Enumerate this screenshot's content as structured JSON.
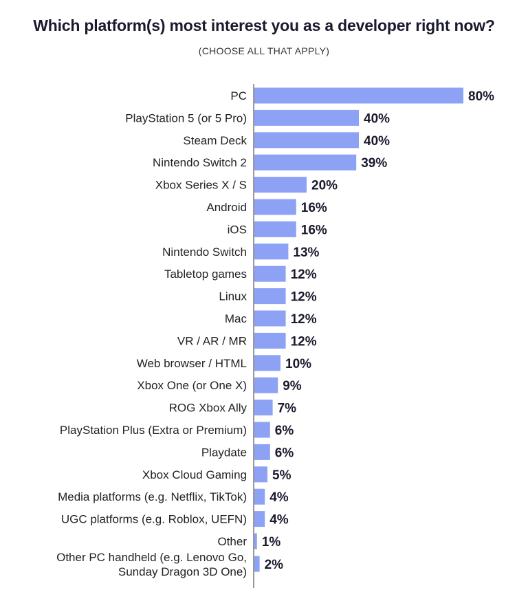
{
  "chart_data": {
    "type": "bar",
    "orientation": "horizontal",
    "title": "Which platform(s) most interest you as a developer right now?",
    "subtitle": "(CHOOSE ALL THAT APPLY)",
    "value_suffix": "%",
    "xlim": [
      0,
      100
    ],
    "grid": false,
    "legend": "none",
    "bar_color": "#8da2f5",
    "label_color": "#1a1a2e",
    "categories": [
      "PC",
      "PlayStation 5 (or 5 Pro)",
      "Steam Deck",
      "Nintendo Switch 2",
      "Xbox Series X / S",
      "Android",
      "iOS",
      "Nintendo Switch",
      "Tabletop games",
      "Linux",
      "Mac",
      "VR / AR / MR",
      "Web browser / HTML",
      "Xbox One (or One X)",
      "ROG Xbox Ally",
      "PlayStation Plus (Extra or Premium)",
      "Playdate",
      "Xbox Cloud Gaming",
      "Media platforms (e.g. Netflix, TikTok)",
      "UGC platforms (e.g. Roblox, UEFN)",
      "Other",
      [
        "Other PC handheld (e.g. Lenovo Go,",
        "Sunday Dragon 3D One)"
      ]
    ],
    "values": [
      80,
      40,
      40,
      39,
      20,
      16,
      16,
      13,
      12,
      12,
      12,
      12,
      10,
      9,
      7,
      6,
      6,
      5,
      4,
      4,
      1,
      2
    ]
  }
}
